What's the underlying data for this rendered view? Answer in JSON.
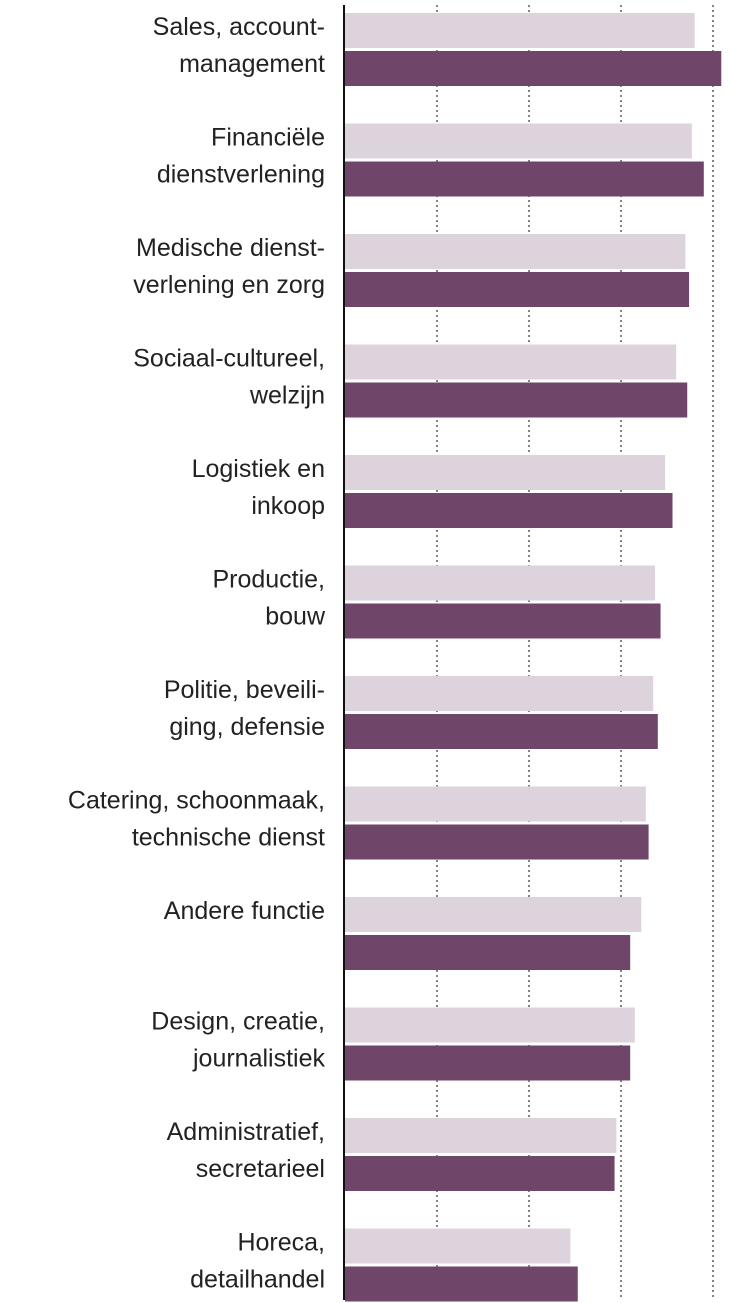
{
  "chart_data": {
    "type": "bar",
    "orientation": "horizontal",
    "categories": [
      [
        "Sales, account-",
        "management"
      ],
      [
        "Financiële",
        "dienstverlening"
      ],
      [
        "Medische dienst-",
        "verlening en zorg"
      ],
      [
        "Sociaal-cultureel,",
        "welzijn"
      ],
      [
        "Logistiek en",
        "inkoop"
      ],
      [
        "Productie,",
        "bouw"
      ],
      [
        "Politie, beveili-",
        "ging, defensie"
      ],
      [
        "Catering, schoonmaak,",
        "technische dienst"
      ],
      [
        "Andere functie"
      ],
      [
        "Design, creatie,",
        "journalistiek"
      ],
      [
        "Administratief,",
        "secretarieel"
      ],
      [
        "Horeca,",
        "detailhandel"
      ]
    ],
    "series": [
      {
        "color": "#ddd3dd",
        "values": [
          3.8,
          3.77,
          3.7,
          3.6,
          3.48,
          3.37,
          3.35,
          3.27,
          3.22,
          3.15,
          2.95,
          2.45
        ]
      },
      {
        "color": "#6f4669",
        "values": [
          4.09,
          3.9,
          3.74,
          3.72,
          3.56,
          3.43,
          3.4,
          3.3,
          3.1,
          3.1,
          2.93,
          2.53
        ]
      }
    ],
    "xlim": [
      0,
      4.1
    ],
    "grid": true,
    "tick_values": [
      1,
      2,
      3,
      4
    ]
  }
}
